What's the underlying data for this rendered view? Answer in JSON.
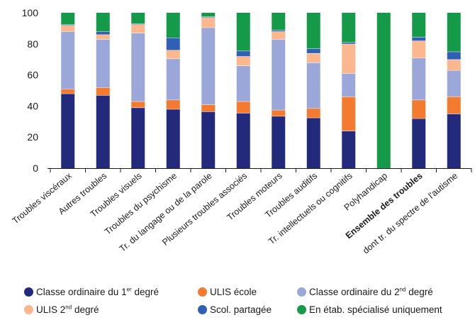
{
  "chart_data": {
    "type": "bar",
    "stacked": true,
    "title": "",
    "xlabel": "",
    "ylabel": "",
    "ylim": [
      0,
      100
    ],
    "yticks": [
      "0",
      "20",
      "40",
      "60",
      "80",
      "100"
    ],
    "grid": false,
    "legend_position": "bottom",
    "categories": [
      "Troubles viscéraux",
      "Autres troubles",
      "Troubles visuels",
      "Troubles du psychisme",
      "Tr. du langage ou de la parole",
      "Plusieurs troubles associés",
      "Troubles moteurs",
      "Troubles auditifs",
      "Tr. intellectuels ou cognitifs",
      "Polyhandicap",
      "Ensemble des troubles",
      "dont tr. du spectre de l'autisme"
    ],
    "bold_category": "Ensemble des troubles",
    "series": [
      {
        "name": "Classe ordinaire du 1er degré",
        "name_base": "Classe ordinaire du 1",
        "name_sup": "er",
        "name_after": " degré",
        "color": "#232a7c",
        "values": [
          48,
          47,
          39,
          38,
          36.5,
          35.5,
          33.5,
          32.5,
          24,
          0,
          32,
          35
        ]
      },
      {
        "name": "ULIS école",
        "color": "#f47a30",
        "values": [
          3,
          5,
          4,
          6,
          4.5,
          7.5,
          4,
          6,
          22,
          0,
          12,
          11
        ]
      },
      {
        "name": "Classe ordinaire du 2nd degré",
        "name_base": "Classe ordinaire du 2",
        "name_sup": "nd",
        "name_after": " degré",
        "color": "#9ba7d8",
        "values": [
          37,
          31,
          44,
          26.5,
          49.5,
          23,
          45.5,
          29.5,
          15,
          0,
          27,
          17
        ]
      },
      {
        "name": "ULIS 2nd degré",
        "name_base": "ULIS 2",
        "name_sup": "nd",
        "name_after": " degré",
        "color": "#fcb78f",
        "values": [
          4,
          3,
          5.5,
          5.5,
          6.5,
          6,
          5,
          6,
          19,
          0,
          11,
          7
        ]
      },
      {
        "name": "Scol. partagée",
        "color": "#2f60b3",
        "values": [
          0.5,
          2,
          0.5,
          8,
          0.5,
          3.5,
          1,
          3,
          1,
          0,
          2.5,
          5
        ]
      },
      {
        "name": "En étab. spécialisé uniquement",
        "color": "#159a4a",
        "values": [
          7.5,
          12,
          7,
          16,
          2.5,
          24.5,
          11,
          23,
          19,
          100,
          15.5,
          25
        ]
      }
    ]
  }
}
